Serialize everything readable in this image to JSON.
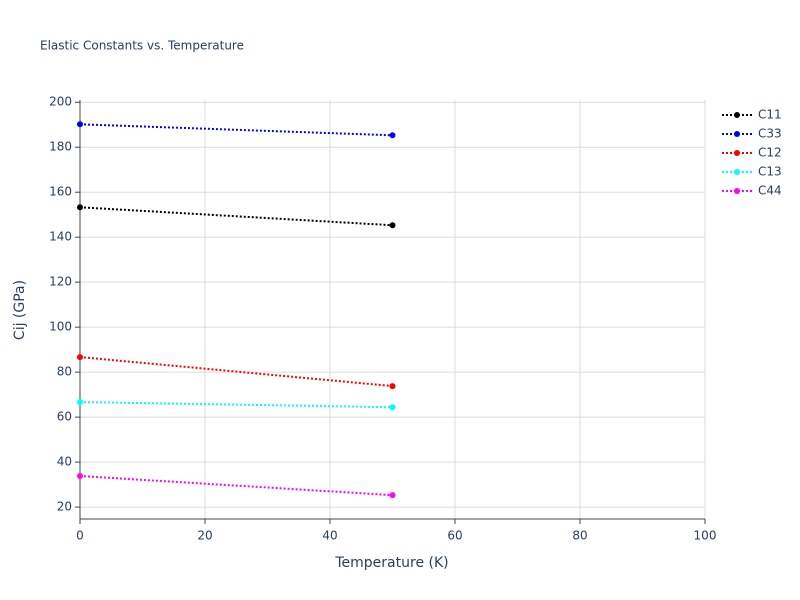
{
  "chart_data": {
    "type": "line",
    "title": "Elastic Constants vs. Temperature",
    "x_label": "Temperature (K)",
    "y_label": "Cij (GPa)",
    "x": [
      0,
      50
    ],
    "series": [
      {
        "name": "C11",
        "color": "#000000",
        "values": [
          153.3,
          145.3
        ]
      },
      {
        "name": "C33",
        "color": "#0000ff",
        "values": [
          190.2,
          185.3
        ]
      },
      {
        "name": "C12",
        "color": "#ff0000",
        "values": [
          86.7,
          73.8
        ]
      },
      {
        "name": "C13",
        "color": "#00ffff",
        "values": [
          66.7,
          64.4
        ]
      },
      {
        "name": "C44",
        "color": "#ff00ff",
        "values": [
          33.8,
          25.3
        ]
      }
    ],
    "xlim": [
      0,
      100
    ],
    "xticks": [
      0,
      20,
      40,
      60,
      80,
      100
    ],
    "ylim": [
      14.7,
      201
    ],
    "yticks": [
      20,
      40,
      60,
      80,
      100,
      120,
      140,
      160,
      180,
      200
    ],
    "grid": true,
    "legend": "right"
  }
}
